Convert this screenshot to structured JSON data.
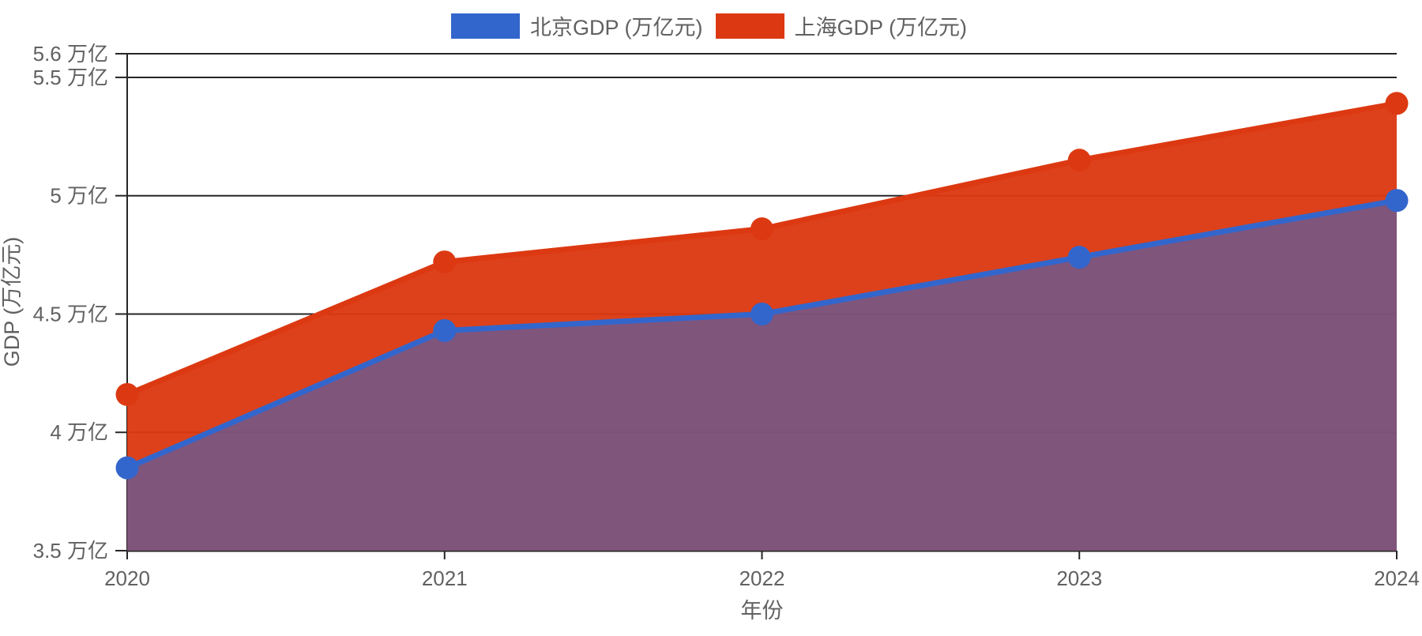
{
  "legend": {
    "items": [
      {
        "id": "beijing",
        "label": "北京GDP (万亿元)",
        "color": "#3366CC"
      },
      {
        "id": "shanghai",
        "label": "上海GDP (万亿元)",
        "color": "#DC3912"
      }
    ]
  },
  "chart_data": {
    "type": "area",
    "title": "",
    "x_labels": [
      "2020",
      "2021",
      "2022",
      "2023",
      "2024"
    ],
    "series": [
      {
        "name": "北京GDP (万亿元)",
        "color": "#3366CC",
        "fill_opacity": 0.55,
        "values": [
          3.85,
          4.43,
          4.5,
          4.74,
          4.98
        ]
      },
      {
        "name": "上海GDP (万亿元)",
        "color": "#DC3912",
        "fill_opacity": 0.96,
        "values": [
          4.16,
          4.72,
          4.86,
          5.15,
          5.39
        ]
      }
    ],
    "xlabel": "年份",
    "ylabel": "GDP (万亿元)",
    "ylim": [
      3.5,
      5.6
    ],
    "y_ticks": [
      {
        "value": 5.6,
        "label": "5.6 万亿"
      },
      {
        "value": 5.5,
        "label": "5.5 万亿"
      },
      {
        "value": 5.0,
        "label": "5 万亿"
      },
      {
        "value": 4.5,
        "label": "4.5 万亿"
      },
      {
        "value": 4.0,
        "label": "4 万亿"
      },
      {
        "value": 3.5,
        "label": "3.5 万亿"
      }
    ],
    "grid": true,
    "legend_position": "top",
    "colors": {
      "grid_line": "#262626",
      "axis_line": "#262626",
      "label_text": "#616161",
      "background": "#ffffff"
    }
  }
}
